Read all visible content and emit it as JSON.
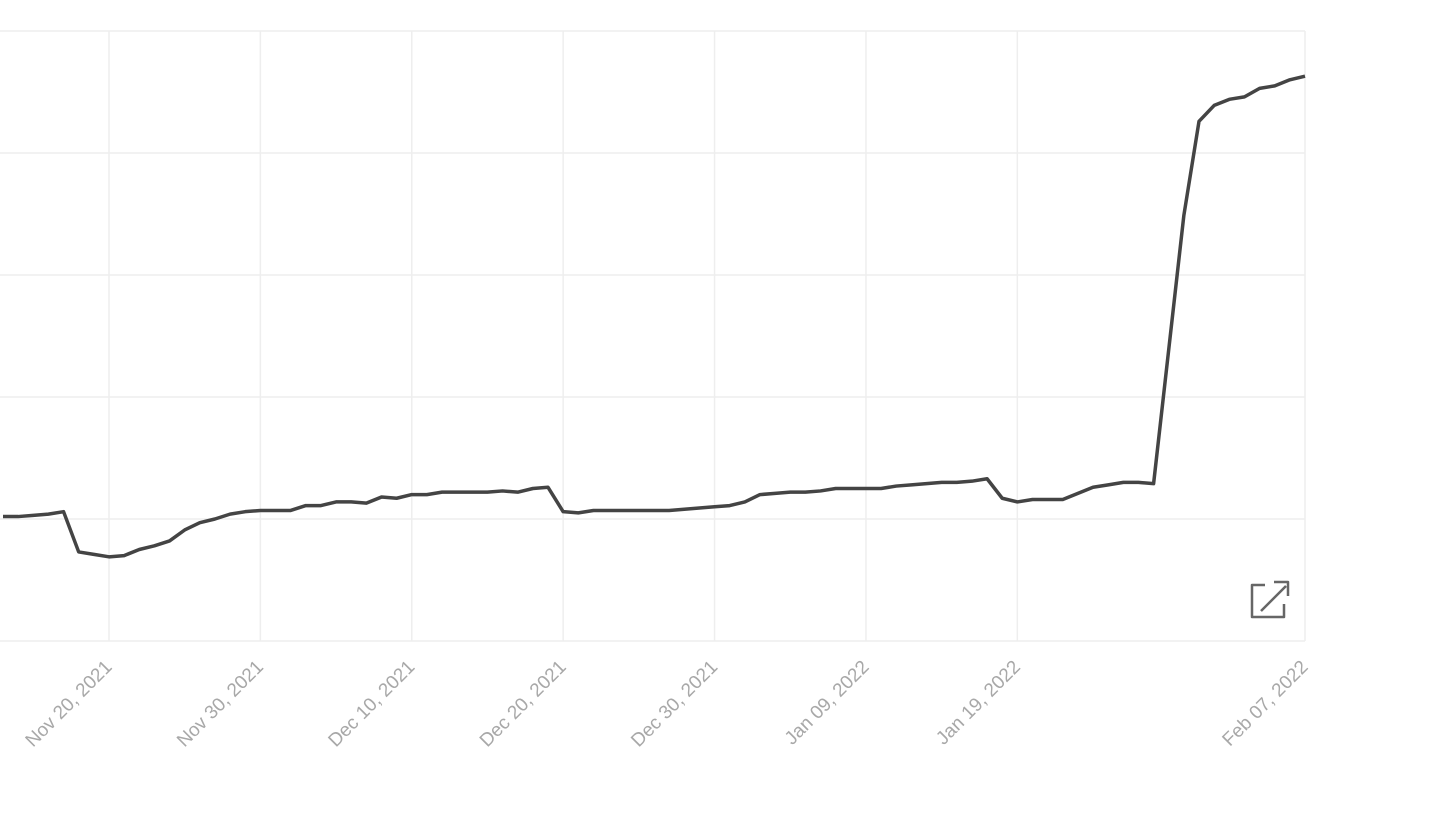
{
  "chart_data": {
    "type": "line",
    "x": [
      "2021-11-13",
      "2021-11-14",
      "2021-11-15",
      "2021-11-16",
      "2021-11-17",
      "2021-11-18",
      "2021-11-19",
      "2021-11-20",
      "2021-11-21",
      "2021-11-22",
      "2021-11-23",
      "2021-11-24",
      "2021-11-25",
      "2021-11-26",
      "2021-11-27",
      "2021-11-28",
      "2021-11-29",
      "2021-11-30",
      "2021-12-01",
      "2021-12-02",
      "2021-12-03",
      "2021-12-04",
      "2021-12-05",
      "2021-12-06",
      "2021-12-07",
      "2021-12-08",
      "2021-12-09",
      "2021-12-10",
      "2021-12-11",
      "2021-12-12",
      "2021-12-13",
      "2021-12-14",
      "2021-12-15",
      "2021-12-16",
      "2021-12-17",
      "2021-12-18",
      "2021-12-19",
      "2021-12-20",
      "2021-12-21",
      "2021-12-22",
      "2021-12-23",
      "2021-12-24",
      "2021-12-25",
      "2021-12-26",
      "2021-12-27",
      "2021-12-28",
      "2021-12-29",
      "2021-12-30",
      "2021-12-31",
      "2022-01-01",
      "2022-01-02",
      "2022-01-03",
      "2022-01-04",
      "2022-01-05",
      "2022-01-06",
      "2022-01-07",
      "2022-01-08",
      "2022-01-09",
      "2022-01-10",
      "2022-01-11",
      "2022-01-12",
      "2022-01-13",
      "2022-01-14",
      "2022-01-15",
      "2022-01-16",
      "2022-01-17",
      "2022-01-18",
      "2022-01-19",
      "2022-01-20",
      "2022-01-21",
      "2022-01-22",
      "2022-01-23",
      "2022-01-24",
      "2022-01-25",
      "2022-01-26",
      "2022-01-27",
      "2022-01-28",
      "2022-01-29",
      "2022-01-30",
      "2022-01-31",
      "2022-02-01",
      "2022-02-02",
      "2022-02-03",
      "2022-02-04",
      "2022-02-05",
      "2022-02-06",
      "2022-02-07"
    ],
    "values": [
      1.02,
      1.02,
      1.03,
      1.04,
      1.06,
      0.73,
      0.71,
      0.69,
      0.7,
      0.75,
      0.78,
      0.82,
      0.91,
      0.97,
      1.0,
      1.04,
      1.06,
      1.07,
      1.07,
      1.07,
      1.11,
      1.11,
      1.14,
      1.14,
      1.13,
      1.18,
      1.17,
      1.2,
      1.2,
      1.22,
      1.22,
      1.22,
      1.22,
      1.23,
      1.22,
      1.25,
      1.26,
      1.06,
      1.05,
      1.07,
      1.07,
      1.07,
      1.07,
      1.07,
      1.07,
      1.08,
      1.09,
      1.1,
      1.11,
      1.14,
      1.2,
      1.21,
      1.22,
      1.22,
      1.23,
      1.25,
      1.25,
      1.25,
      1.25,
      1.27,
      1.28,
      1.29,
      1.3,
      1.3,
      1.31,
      1.33,
      1.17,
      1.14,
      1.16,
      1.16,
      1.16,
      1.21,
      1.26,
      1.28,
      1.3,
      1.3,
      1.29,
      2.39,
      3.49,
      4.26,
      4.39,
      4.44,
      4.46,
      4.53,
      4.55,
      4.6,
      4.63
    ],
    "color": "#444444",
    "xlim": [
      "2021-11-13",
      "2022-02-07"
    ],
    "xticks": [
      {
        "value": "2021-11-20",
        "label": "Nov 20, 2021"
      },
      {
        "value": "2021-11-30",
        "label": "Nov 30, 2021"
      },
      {
        "value": "2021-12-10",
        "label": "Dec 10, 2021"
      },
      {
        "value": "2021-12-20",
        "label": "Dec 20, 2021"
      },
      {
        "value": "2021-12-30",
        "label": "Dec 30, 2021"
      },
      {
        "value": "2022-01-09",
        "label": "Jan 09, 2022"
      },
      {
        "value": "2022-01-19",
        "label": "Jan 19, 2022"
      },
      {
        "value": "2022-02-07",
        "label": "Feb 07, 2022"
      }
    ],
    "ylim": [
      0,
      5
    ],
    "y_gridlines": [
      0,
      1,
      2,
      3,
      4,
      5
    ],
    "grid": true
  }
}
